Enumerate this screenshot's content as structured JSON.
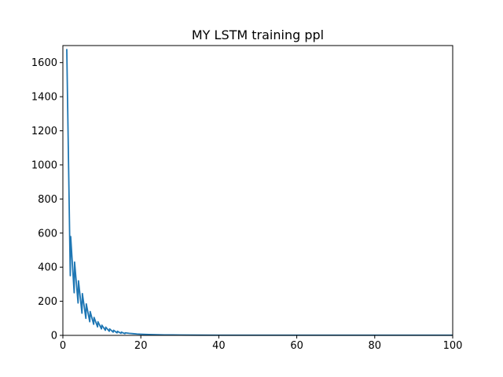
{
  "chart_data": {
    "type": "line",
    "title": "MY LSTM training ppl",
    "xlabel": "",
    "ylabel": "",
    "xlim": [
      0,
      100
    ],
    "ylim": [
      0,
      1700
    ],
    "xticks": [
      0,
      20,
      40,
      60,
      80,
      100
    ],
    "yticks": [
      0,
      200,
      400,
      600,
      800,
      1000,
      1200,
      1400,
      1600
    ],
    "grid": false,
    "legend": "none",
    "colors": {
      "line": "#1f77b4",
      "axes": "#000000",
      "background": "#ffffff"
    },
    "series": [
      {
        "x": [
          1,
          1.9,
          2,
          2.9,
          3,
          3.9,
          4,
          4.9,
          5,
          5.9,
          6,
          6.9,
          7,
          7.9,
          8,
          8.9,
          9,
          9.9,
          10,
          10.9,
          11,
          11.9,
          12,
          12.9,
          13,
          13.9,
          14,
          14.9,
          15,
          15.9,
          16,
          17,
          18,
          19,
          20,
          22,
          24,
          26,
          28,
          30,
          35,
          40,
          50,
          60,
          70,
          80,
          90,
          100
        ],
        "values": [
          1680,
          350,
          580,
          250,
          430,
          190,
          320,
          130,
          245,
          100,
          185,
          80,
          140,
          65,
          105,
          50,
          80,
          38,
          60,
          30,
          48,
          24,
          38,
          19,
          30,
          15,
          24,
          12,
          19,
          10,
          15,
          12,
          10,
          8,
          7,
          5,
          4,
          3,
          2.5,
          2,
          1.5,
          1.2,
          1,
          1,
          1,
          1,
          1,
          1
        ]
      }
    ]
  }
}
